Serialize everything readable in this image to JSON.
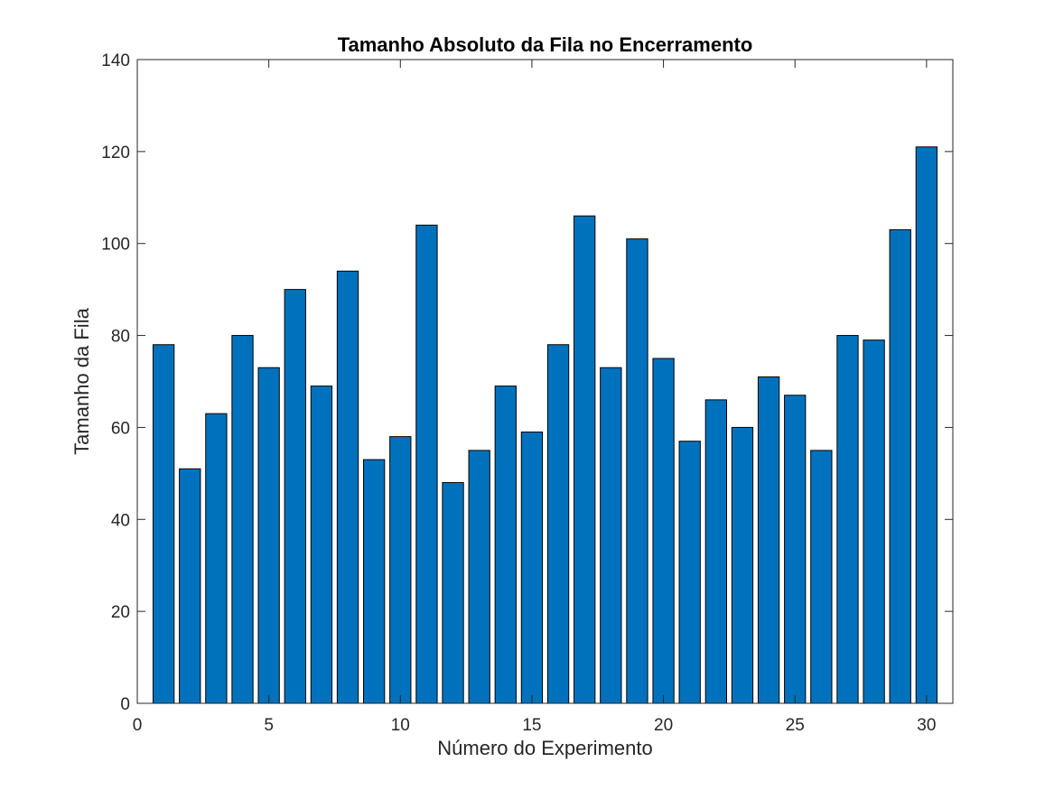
{
  "chart_data": {
    "type": "bar",
    "title": "Tamanho Absoluto da Fila no Encerramento",
    "xlabel": "Número do Experimento",
    "ylabel": "Tamanho da Fila",
    "xlim": [
      0,
      31
    ],
    "ylim": [
      0,
      140
    ],
    "xticks": [
      0,
      5,
      10,
      15,
      20,
      25,
      30
    ],
    "yticks": [
      0,
      20,
      40,
      60,
      80,
      100,
      120,
      140
    ],
    "grid": false,
    "bar_color": "#0072BD",
    "x": [
      1,
      2,
      3,
      4,
      5,
      6,
      7,
      8,
      9,
      10,
      11,
      12,
      13,
      14,
      15,
      16,
      17,
      18,
      19,
      20,
      21,
      22,
      23,
      24,
      25,
      26,
      27,
      28,
      29,
      30
    ],
    "values": [
      78,
      51,
      63,
      80,
      73,
      90,
      69,
      94,
      53,
      58,
      104,
      48,
      55,
      69,
      59,
      78,
      106,
      73,
      101,
      75,
      57,
      66,
      60,
      71,
      67,
      55,
      80,
      79,
      103,
      121
    ]
  }
}
